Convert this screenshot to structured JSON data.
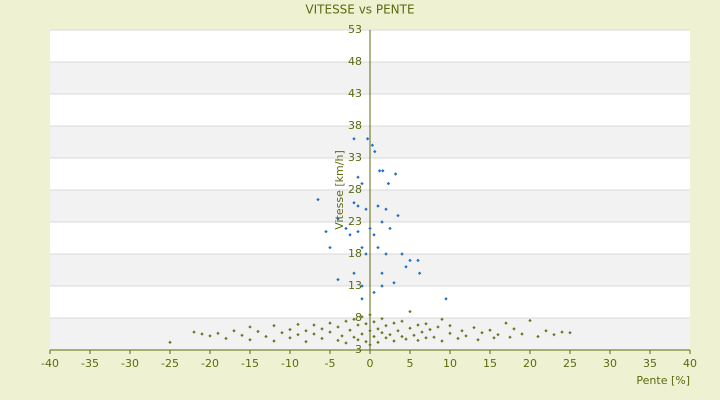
{
  "chart_data": {
    "type": "scatter",
    "title": "VITESSE vs PENTE",
    "xlabel": "Pente [%]",
    "ylabel": "Vitesse [km/h]",
    "xlim": [
      -40,
      40
    ],
    "xticks": [
      -40,
      -35,
      -30,
      -25,
      -20,
      -15,
      -10,
      -5,
      0,
      5,
      10,
      15,
      20,
      25,
      30,
      35,
      40
    ],
    "ylim": [
      3,
      53
    ],
    "yticks": [
      3,
      8,
      13,
      18,
      23,
      28,
      33,
      38,
      43,
      48,
      53
    ],
    "grid": true,
    "series": [
      {
        "color": "#1f6fc0",
        "x": [
          -2,
          -0.3,
          0.3,
          0.6,
          1.2,
          1.6,
          3.2,
          2.3,
          -1.5,
          -1,
          -6.5,
          -2,
          -1.5,
          -0.5,
          1,
          2,
          -4,
          -5.5,
          -5,
          -3,
          -2.5,
          -1.5,
          0,
          0.5,
          1.5,
          2.5,
          3.5,
          -1,
          -0.5,
          1,
          2,
          4,
          5,
          6,
          6.2,
          4.5,
          1.5,
          -2,
          -4,
          -1,
          0.5,
          1.5,
          3,
          9.5,
          -1
        ],
        "values": [
          36,
          36,
          35,
          34,
          31,
          31,
          30.5,
          29,
          30,
          29,
          26.5,
          26,
          25.5,
          25,
          25.5,
          25,
          23.5,
          21.5,
          19,
          22,
          21,
          21.5,
          22,
          21,
          23,
          22,
          24,
          19,
          18,
          19,
          18,
          18,
          17,
          17,
          15,
          16,
          15,
          15,
          14,
          13,
          12,
          13,
          13.5,
          11,
          11
        ]
      },
      {
        "color": "#6b7a1e",
        "x": [
          -25,
          -22,
          -21,
          -20,
          -19,
          -18,
          -17,
          -16,
          -15,
          -15,
          -14,
          -13,
          -12,
          -12,
          -11,
          -10,
          -10,
          -9,
          -9,
          -8,
          -8,
          -7,
          -7,
          -6,
          -6,
          -5,
          -5,
          -4,
          -4,
          -3.5,
          -3,
          -3,
          -2.5,
          -2,
          -2,
          -1.5,
          -1.5,
          -1,
          -1,
          -0.5,
          -0.5,
          0,
          0,
          0,
          0.5,
          0.5,
          1,
          1,
          1.5,
          1.5,
          2,
          2,
          2.5,
          3,
          3,
          3.5,
          4,
          4,
          4.5,
          5,
          5,
          5.5,
          6,
          6,
          6.5,
          7,
          7,
          7.5,
          8,
          8.5,
          9,
          9,
          10,
          10,
          11,
          11.5,
          12,
          13,
          13.5,
          14,
          15,
          15.5,
          16,
          17,
          17.5,
          18,
          19,
          20,
          21,
          22,
          23,
          24,
          25
        ],
        "values": [
          4.2,
          5.8,
          5.5,
          5.2,
          5.6,
          4.8,
          6.0,
          5.3,
          6.6,
          4.6,
          5.9,
          5.1,
          6.8,
          4.4,
          5.7,
          6.2,
          4.9,
          5.4,
          7.0,
          6.0,
          4.3,
          5.5,
          6.9,
          4.8,
          6.3,
          5.8,
          7.2,
          4.5,
          6.6,
          5.2,
          7.5,
          4.1,
          6.1,
          5.0,
          7.8,
          4.6,
          6.9,
          5.5,
          8.2,
          4.3,
          7.1,
          6.0,
          3.8,
          8.5,
          5.1,
          7.4,
          6.3,
          4.2,
          5.7,
          7.9,
          4.9,
          6.8,
          5.4,
          7.2,
          4.4,
          6.0,
          5.1,
          7.5,
          4.7,
          6.4,
          9.0,
          5.3,
          4.5,
          6.9,
          5.8,
          4.9,
          7.1,
          6.2,
          5.0,
          6.6,
          4.4,
          7.8,
          5.6,
          6.8,
          4.8,
          6.0,
          5.2,
          6.5,
          4.6,
          5.7,
          6.1,
          4.9,
          5.4,
          7.2,
          5.0,
          6.3,
          5.5,
          7.6,
          5.1,
          6.0,
          5.4,
          5.8,
          5.7
        ]
      }
    ]
  }
}
